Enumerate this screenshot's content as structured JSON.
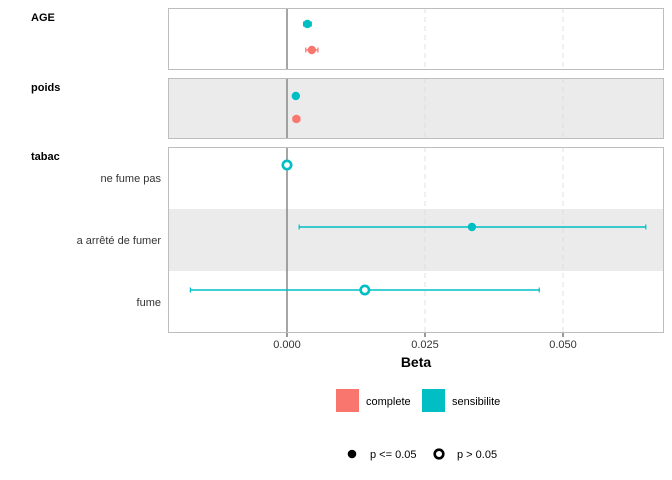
{
  "chart_data": {
    "type": "forest",
    "xlabel": "Beta",
    "x_ticks": [
      0.0,
      0.025,
      0.05
    ],
    "x_tick_labels": [
      "0.000",
      "0.025",
      "0.050"
    ],
    "xlim": [
      -0.021,
      0.068
    ],
    "grid": "vertical dashed",
    "legend_position": "bottom",
    "colors": {
      "complete": "#F8766D",
      "sensibilite": "#00BFC4"
    },
    "legend_color": [
      {
        "key": "complete",
        "label": "complete"
      },
      {
        "key": "sensibilite",
        "label": "sensibilite"
      }
    ],
    "legend_shape": [
      {
        "key": "filled",
        "label": "p <= 0.05"
      },
      {
        "key": "hollow",
        "label": "p > 0.05"
      }
    ],
    "panels": [
      {
        "label": "AGE",
        "shaded": false,
        "rows": [
          {
            "label": "",
            "shaded": false,
            "estimates": [
              {
                "series": "sensibilite",
                "beta": 0.0037,
                "low": 0.003,
                "high": 0.0044,
                "significant": true
              },
              {
                "series": "complete",
                "beta": 0.0045,
                "low": 0.0034,
                "high": 0.0056,
                "significant": true
              }
            ]
          }
        ]
      },
      {
        "label": "poids",
        "shaded": true,
        "rows": [
          {
            "label": "",
            "shaded": true,
            "estimates": [
              {
                "series": "sensibilite",
                "beta": 0.0016,
                "low": 0.0012,
                "high": 0.002,
                "significant": true
              },
              {
                "series": "complete",
                "beta": 0.0017,
                "low": 0.0011,
                "high": 0.0023,
                "significant": true
              }
            ]
          }
        ]
      },
      {
        "label": "tabac",
        "shaded": false,
        "rows": [
          {
            "label": "ne fume pas",
            "shaded": false,
            "estimates": [
              {
                "series": "sensibilite",
                "beta": 0.0,
                "low": 0.0,
                "high": 0.0,
                "significant": false
              }
            ]
          },
          {
            "label": "a arrêté de fumer",
            "shaded": true,
            "estimates": [
              {
                "series": "sensibilite",
                "beta": 0.0335,
                "low": 0.0022,
                "high": 0.065,
                "significant": true
              }
            ]
          },
          {
            "label": "fume",
            "shaded": false,
            "estimates": [
              {
                "series": "sensibilite",
                "beta": 0.0141,
                "low": -0.0175,
                "high": 0.0457,
                "significant": false
              }
            ]
          }
        ]
      }
    ]
  }
}
